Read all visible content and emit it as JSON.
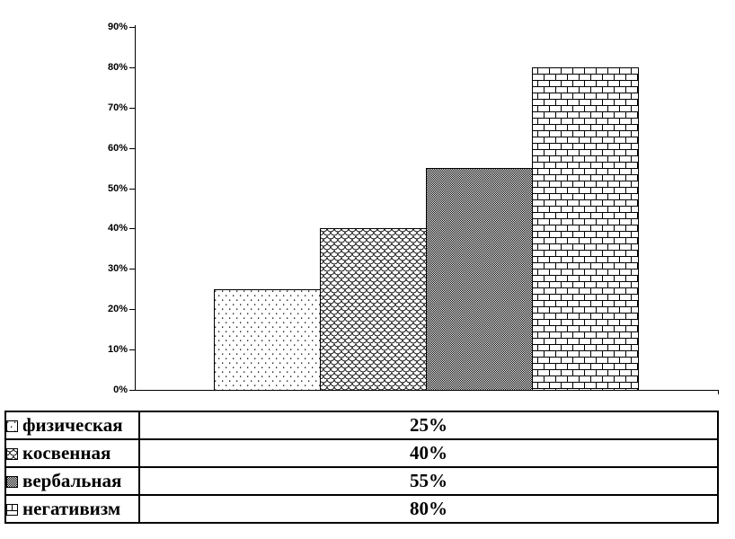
{
  "page": {
    "background": "#ffffff",
    "foreground": "#000000"
  },
  "chart_data": {
    "type": "bar",
    "categories": [
      "физическая",
      "косвенная",
      "вербальная",
      "негативизм"
    ],
    "values": [
      25,
      40,
      55,
      80
    ],
    "unit": "%",
    "title": "",
    "xlabel": "",
    "ylabel": "",
    "ylim": [
      0,
      90
    ],
    "y_tick_step": 10,
    "y_tick_labels": [
      "0%",
      "10%",
      "20%",
      "30%",
      "40%",
      "50%",
      "60%",
      "70%",
      "80%",
      "90%"
    ],
    "grid": false,
    "bar_fill_patterns": [
      "dots",
      "scales",
      "checker",
      "brick"
    ],
    "bar_outline_color": "#000000",
    "bar_background_color": "#ffffff",
    "legend_position": "bottom-table"
  },
  "legend": {
    "rows": [
      {
        "label": "физическая",
        "value": "25%",
        "pattern": "dots",
        "pattern_icon": "sparse-dots-swatch-icon"
      },
      {
        "label": "косвенная",
        "value": "40%",
        "pattern": "scales",
        "pattern_icon": "fish-scale-swatch-icon"
      },
      {
        "label": "вербальная",
        "value": "55%",
        "pattern": "checker",
        "pattern_icon": "dense-checker-swatch-icon"
      },
      {
        "label": "негативизм",
        "value": "80%",
        "pattern": "brick",
        "pattern_icon": "brick-swatch-icon"
      }
    ]
  }
}
